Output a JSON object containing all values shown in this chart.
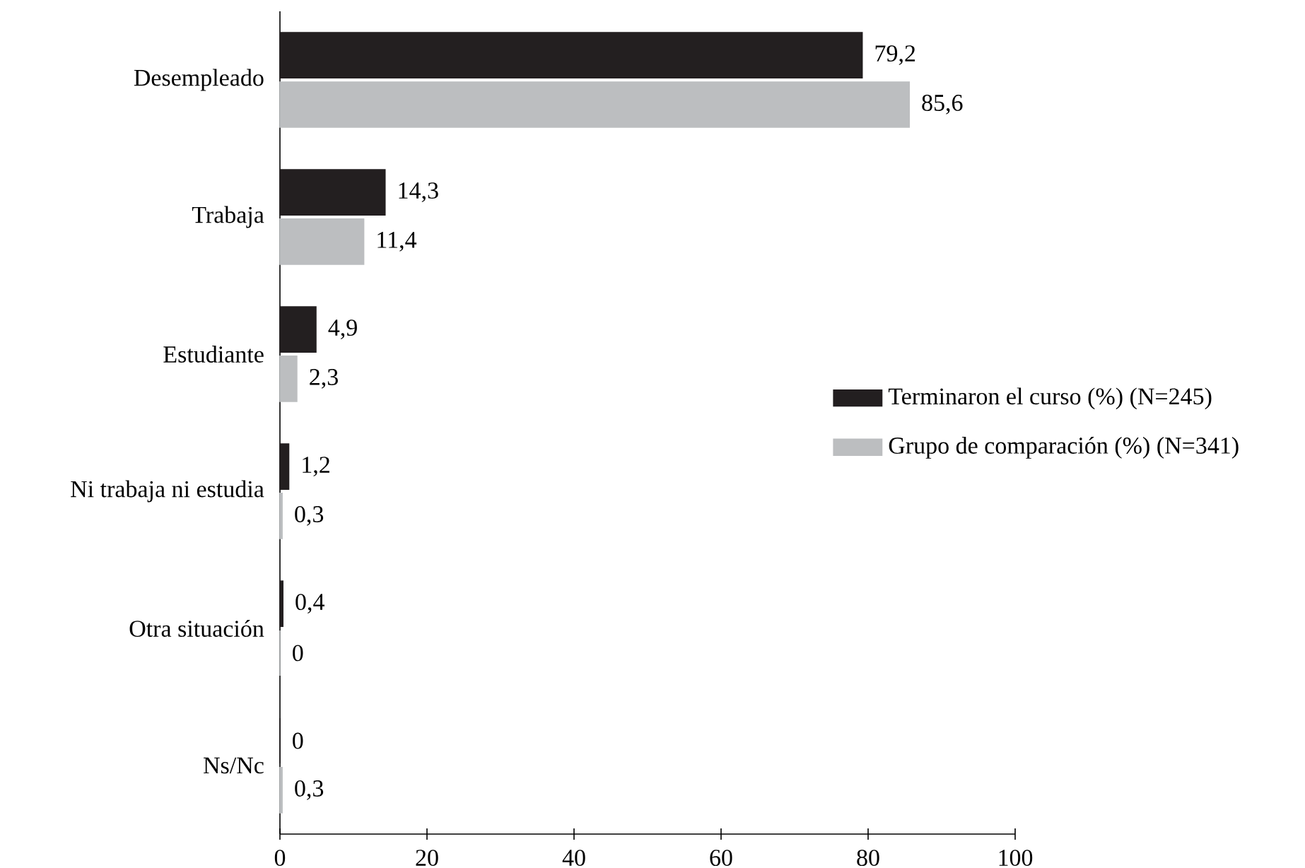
{
  "chart_data": {
    "type": "bar",
    "orientation": "horizontal",
    "categories": [
      "Desempleado",
      "Trabaja",
      "Estudiante",
      "Ni trabaja ni estudia",
      "Otra situación",
      "Ns/Nc"
    ],
    "series": [
      {
        "name": "Terminaron el curso (%) (N=245)",
        "color": "#231f20",
        "values": [
          79.2,
          14.3,
          4.9,
          1.2,
          0.4,
          0
        ],
        "value_labels": [
          "79,2",
          "14,3",
          "4,9",
          "1,2",
          "0,4",
          "0"
        ]
      },
      {
        "name": "Grupo de comparación (%) (N=341)",
        "color": "#bcbec0",
        "values": [
          85.6,
          11.4,
          2.3,
          0.3,
          0,
          0.3
        ],
        "value_labels": [
          "85,6",
          "11,4",
          "2,3",
          "0,3",
          "0",
          "0,3"
        ]
      }
    ],
    "xlim": [
      0,
      100
    ],
    "xticks": [
      0,
      20,
      40,
      60,
      80,
      100
    ],
    "legend": "right"
  }
}
